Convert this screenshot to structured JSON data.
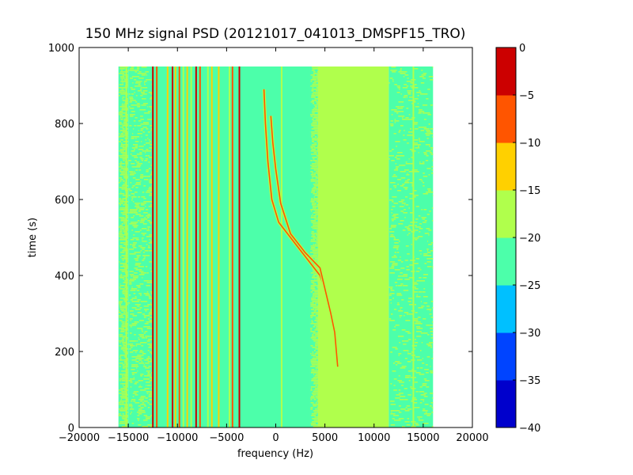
{
  "chart_data": {
    "type": "heatmap",
    "title": "150 MHz signal PSD (20121017_041013_DMSPF15_TRO)",
    "xlabel": "frequency (Hz)",
    "ylabel": "time (s)",
    "xlim": [
      -20000,
      20000
    ],
    "ylim": [
      0,
      1000
    ],
    "xticks": [
      -20000,
      -15000,
      -10000,
      -5000,
      0,
      5000,
      10000,
      15000,
      20000
    ],
    "xtick_labels": [
      "−20000",
      "−15000",
      "−10000",
      "−5000",
      "0",
      "5000",
      "10000",
      "15000",
      "20000"
    ],
    "yticks": [
      0,
      200,
      400,
      600,
      800,
      1000
    ],
    "ytick_labels": [
      "0",
      "200",
      "400",
      "600",
      "800",
      "1000"
    ],
    "data_extent": {
      "frequency_hz": [
        -16000,
        16000
      ],
      "time_s": [
        0,
        950
      ]
    },
    "colorbar": {
      "levels": [
        -40,
        -35,
        -30,
        -25,
        -20,
        -15,
        -10,
        -5,
        0
      ],
      "tick_labels": [
        "−40",
        "−35",
        "−30",
        "−25",
        "−20",
        "−15",
        "−10",
        "−5",
        "0"
      ],
      "colors": [
        "#0000cc",
        "#0044ff",
        "#00c0ff",
        "#4cffaa",
        "#b0ff4c",
        "#ffd000",
        "#ff5500",
        "#cc0000"
      ]
    },
    "background_regions": [
      {
        "freq_range": [
          -16000,
          -15000
        ],
        "level": "-25 to -20",
        "speckle": true
      },
      {
        "freq_range": [
          -15000,
          -12500
        ],
        "level": "-25 to -20",
        "speckle": true
      },
      {
        "freq_range": [
          -12500,
          3500
        ],
        "level": "-25 to -20",
        "speckle": false
      },
      {
        "freq_range": [
          3500,
          4300
        ],
        "level": "-25 to -20",
        "speckle": true
      },
      {
        "freq_range": [
          4300,
          11500
        ],
        "level": "-20 to -15",
        "speckle": false
      },
      {
        "freq_range": [
          11500,
          16000
        ],
        "level": "-25 to -20",
        "speckle": true
      }
    ],
    "vertical_lines": [
      {
        "freq": -15200,
        "level": "-20 to -15",
        "time_range": [
          0,
          950
        ]
      },
      {
        "freq": -12500,
        "level": "-5 to 0",
        "time_range": [
          0,
          950
        ]
      },
      {
        "freq": -12100,
        "level": "-10 to -5",
        "time_range": [
          0,
          950
        ]
      },
      {
        "freq": -11000,
        "level": "-15 to -10",
        "time_range": [
          0,
          950
        ]
      },
      {
        "freq": -10500,
        "level": "-5 to 0",
        "time_range": [
          0,
          950
        ]
      },
      {
        "freq": -10200,
        "level": "-15 to -10",
        "time_range": [
          0,
          950
        ]
      },
      {
        "freq": -9800,
        "level": "-10 to -5",
        "time_range": [
          0,
          950
        ]
      },
      {
        "freq": -9400,
        "level": "-20 to -15",
        "time_range": [
          0,
          950
        ]
      },
      {
        "freq": -9000,
        "level": "-15 to -10",
        "time_range": [
          0,
          950
        ]
      },
      {
        "freq": -8600,
        "level": "-20 to -15",
        "time_range": [
          0,
          950
        ]
      },
      {
        "freq": -8100,
        "level": "-5 to 0",
        "time_range": [
          0,
          950
        ]
      },
      {
        "freq": -7700,
        "level": "-10 to -5",
        "time_range": [
          0,
          950
        ]
      },
      {
        "freq": -6900,
        "level": "-20 to -15",
        "time_range": [
          0,
          950
        ]
      },
      {
        "freq": -6500,
        "level": "-15 to -10",
        "time_range": [
          0,
          950
        ]
      },
      {
        "freq": -5800,
        "level": "-15 to -10",
        "time_range": [
          0,
          950
        ]
      },
      {
        "freq": -4700,
        "level": "-20 to -15",
        "time_range": [
          0,
          950
        ]
      },
      {
        "freq": -4400,
        "level": "-10 to -5",
        "time_range": [
          0,
          950
        ]
      },
      {
        "freq": -3700,
        "level": "-5 to 0",
        "time_range": [
          0,
          950
        ]
      },
      {
        "freq": 600,
        "level": "-20 to -15",
        "time_range": [
          0,
          950
        ]
      },
      {
        "freq": 14000,
        "level": "-20 to -15",
        "time_range": [
          0,
          950
        ]
      }
    ],
    "curves": [
      {
        "points": [
          [
            -1200,
            890
          ],
          [
            -1050,
            800
          ],
          [
            -800,
            700
          ],
          [
            -400,
            600
          ],
          [
            300,
            540
          ],
          [
            1500,
            500
          ],
          [
            3000,
            450
          ],
          [
            4500,
            400
          ],
          [
            5200,
            350
          ]
        ],
        "level": "-10 to -5"
      },
      {
        "points": [
          [
            -500,
            820
          ],
          [
            -300,
            750
          ],
          [
            0,
            680
          ],
          [
            500,
            590
          ],
          [
            1500,
            510
          ],
          [
            3000,
            460
          ],
          [
            4500,
            420
          ],
          [
            5600,
            300
          ],
          [
            6000,
            250
          ],
          [
            6300,
            160
          ]
        ],
        "level": "-10 to -5"
      }
    ]
  }
}
